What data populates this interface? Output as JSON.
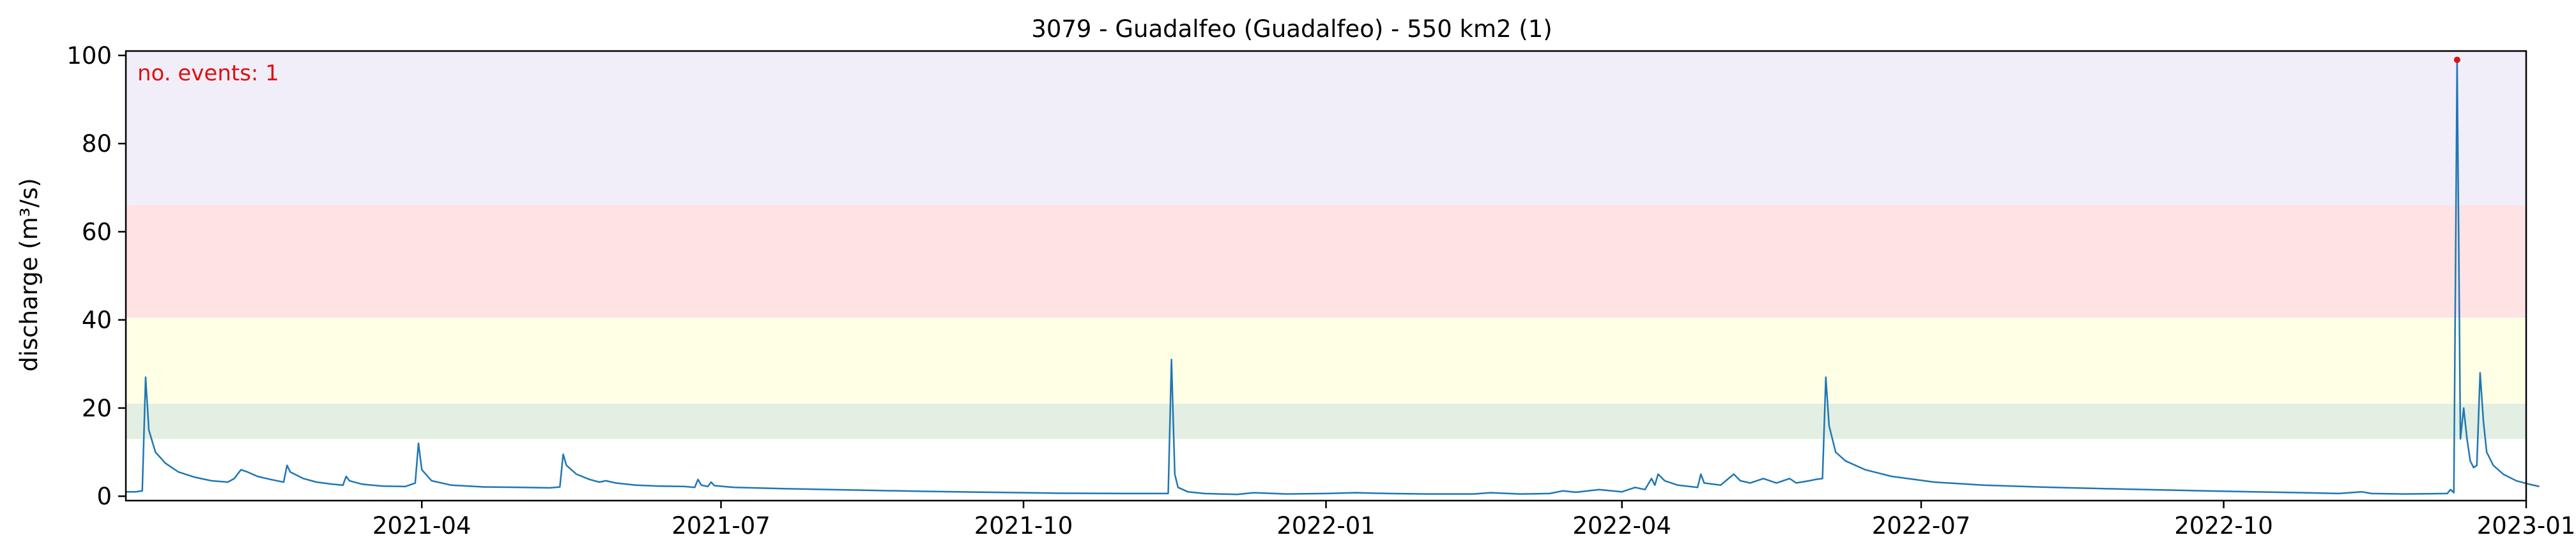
{
  "chart_data": {
    "type": "line",
    "title": "3079 - Guadalfeo (Guadalfeo) - 550 km2 (1)",
    "xlabel": "",
    "ylabel": "discharge (m³/s)",
    "xlim": [
      "2021-01-01",
      "2023-01-01"
    ],
    "ylim": [
      -1,
      101
    ],
    "x_ticks": [
      "2021-04",
      "2021-07",
      "2021-10",
      "2022-01",
      "2022-04",
      "2022-07",
      "2022-10",
      "2023-01"
    ],
    "y_ticks": [
      0,
      20,
      40,
      60,
      80,
      100
    ],
    "grid": false,
    "threshold_bands": [
      {
        "from": 13,
        "to": 21,
        "color": "#e3efe3"
      },
      {
        "from": 21,
        "to": 40.5,
        "color": "#ffffe6"
      },
      {
        "from": 40.5,
        "to": 66,
        "color": "#ffe2e4"
      },
      {
        "from": 66,
        "to": 101,
        "color": "#f1eef9"
      }
    ],
    "annotation": {
      "text": "no. events: 1",
      "color": "#dd1111"
    },
    "event_points": [
      {
        "x": "2022-12-11",
        "y": 99
      }
    ],
    "series": [
      {
        "color": "#1f77b4",
        "points": [
          [
            "2021-01-01",
            1.0
          ],
          [
            "2021-01-04",
            1.0
          ],
          [
            "2021-01-06",
            1.2
          ],
          [
            "2021-01-07",
            27
          ],
          [
            "2021-01-08",
            15
          ],
          [
            "2021-01-10",
            10
          ],
          [
            "2021-01-13",
            7.5
          ],
          [
            "2021-01-17",
            5.5
          ],
          [
            "2021-01-22",
            4.3
          ],
          [
            "2021-01-27",
            3.5
          ],
          [
            "2021-02-01",
            3.2
          ],
          [
            "2021-02-03",
            4.0
          ],
          [
            "2021-02-05",
            6.0
          ],
          [
            "2021-02-07",
            5.5
          ],
          [
            "2021-02-10",
            4.5
          ],
          [
            "2021-02-14",
            3.8
          ],
          [
            "2021-02-18",
            3.2
          ],
          [
            "2021-02-19",
            7.0
          ],
          [
            "2021-02-20",
            5.5
          ],
          [
            "2021-02-24",
            4.0
          ],
          [
            "2021-02-28",
            3.2
          ],
          [
            "2021-03-05",
            2.7
          ],
          [
            "2021-03-08",
            2.5
          ],
          [
            "2021-03-09",
            4.5
          ],
          [
            "2021-03-10",
            3.5
          ],
          [
            "2021-03-14",
            2.7
          ],
          [
            "2021-03-20",
            2.3
          ],
          [
            "2021-03-27",
            2.2
          ],
          [
            "2021-03-30",
            3.0
          ],
          [
            "2021-03-31",
            12
          ],
          [
            "2021-04-01",
            6.0
          ],
          [
            "2021-04-04",
            3.5
          ],
          [
            "2021-04-10",
            2.5
          ],
          [
            "2021-04-20",
            2.1
          ],
          [
            "2021-05-01",
            2.0
          ],
          [
            "2021-05-10",
            1.9
          ],
          [
            "2021-05-13",
            2.1
          ],
          [
            "2021-05-14",
            9.5
          ],
          [
            "2021-05-15",
            7.0
          ],
          [
            "2021-05-18",
            5.0
          ],
          [
            "2021-05-22",
            3.8
          ],
          [
            "2021-05-25",
            3.2
          ],
          [
            "2021-05-27",
            3.5
          ],
          [
            "2021-05-30",
            3.0
          ],
          [
            "2021-06-05",
            2.5
          ],
          [
            "2021-06-12",
            2.3
          ],
          [
            "2021-06-20",
            2.2
          ],
          [
            "2021-06-23",
            2.0
          ],
          [
            "2021-06-24",
            3.8
          ],
          [
            "2021-06-25",
            2.5
          ],
          [
            "2021-06-27",
            2.2
          ],
          [
            "2021-06-28",
            3.2
          ],
          [
            "2021-06-29",
            2.4
          ],
          [
            "2021-07-05",
            2.0
          ],
          [
            "2021-07-20",
            1.7
          ],
          [
            "2021-08-10",
            1.4
          ],
          [
            "2021-09-01",
            1.1
          ],
          [
            "2021-09-20",
            0.9
          ],
          [
            "2021-10-10",
            0.7
          ],
          [
            "2021-11-01",
            0.6
          ],
          [
            "2021-11-14",
            0.6
          ],
          [
            "2021-11-15",
            31
          ],
          [
            "2021-11-16",
            5.0
          ],
          [
            "2021-11-17",
            2.0
          ],
          [
            "2021-11-20",
            1.0
          ],
          [
            "2021-11-25",
            0.6
          ],
          [
            "2021-12-05",
            0.4
          ],
          [
            "2021-12-10",
            0.8
          ],
          [
            "2021-12-20",
            0.5
          ],
          [
            "2022-01-01",
            0.6
          ],
          [
            "2022-01-10",
            0.8
          ],
          [
            "2022-01-20",
            0.6
          ],
          [
            "2022-02-01",
            0.5
          ],
          [
            "2022-02-15",
            0.5
          ],
          [
            "2022-02-20",
            0.8
          ],
          [
            "2022-03-01",
            0.5
          ],
          [
            "2022-03-10",
            0.6
          ],
          [
            "2022-03-14",
            1.2
          ],
          [
            "2022-03-18",
            0.9
          ],
          [
            "2022-03-25",
            1.5
          ],
          [
            "2022-04-01",
            1.0
          ],
          [
            "2022-04-05",
            2.0
          ],
          [
            "2022-04-08",
            1.5
          ],
          [
            "2022-04-10",
            4.0
          ],
          [
            "2022-04-11",
            2.5
          ],
          [
            "2022-04-12",
            5.0
          ],
          [
            "2022-04-14",
            3.5
          ],
          [
            "2022-04-18",
            2.5
          ],
          [
            "2022-04-24",
            2.0
          ],
          [
            "2022-04-25",
            5.0
          ],
          [
            "2022-04-26",
            3.0
          ],
          [
            "2022-05-01",
            2.5
          ],
          [
            "2022-05-05",
            5.0
          ],
          [
            "2022-05-07",
            3.5
          ],
          [
            "2022-05-10",
            3.0
          ],
          [
            "2022-05-14",
            4.0
          ],
          [
            "2022-05-18",
            3.0
          ],
          [
            "2022-05-22",
            4.0
          ],
          [
            "2022-05-24",
            3.0
          ],
          [
            "2022-05-28",
            3.5
          ],
          [
            "2022-05-30",
            3.8
          ],
          [
            "2022-06-01",
            4.0
          ],
          [
            "2022-06-02",
            27
          ],
          [
            "2022-06-03",
            16
          ],
          [
            "2022-06-05",
            10
          ],
          [
            "2022-06-08",
            8.0
          ],
          [
            "2022-06-14",
            6.0
          ],
          [
            "2022-06-22",
            4.5
          ],
          [
            "2022-07-05",
            3.2
          ],
          [
            "2022-07-20",
            2.5
          ],
          [
            "2022-08-10",
            2.0
          ],
          [
            "2022-09-01",
            1.6
          ],
          [
            "2022-09-20",
            1.3
          ],
          [
            "2022-10-10",
            1.0
          ],
          [
            "2022-10-25",
            0.8
          ],
          [
            "2022-11-05",
            0.6
          ],
          [
            "2022-11-12",
            1.0
          ],
          [
            "2022-11-15",
            0.6
          ],
          [
            "2022-11-25",
            0.5
          ],
          [
            "2022-12-08",
            0.6
          ],
          [
            "2022-12-09",
            1.5
          ],
          [
            "2022-12-10",
            0.8
          ],
          [
            "2022-12-11",
            99
          ],
          [
            "2022-12-12",
            13
          ],
          [
            "2022-12-13",
            20
          ],
          [
            "2022-12-14",
            13
          ],
          [
            "2022-12-15",
            8.0
          ],
          [
            "2022-12-16",
            6.5
          ],
          [
            "2022-12-17",
            7.0
          ],
          [
            "2022-12-18",
            28
          ],
          [
            "2022-12-19",
            17
          ],
          [
            "2022-12-20",
            10
          ],
          [
            "2022-12-22",
            7.0
          ],
          [
            "2022-12-25",
            5.0
          ],
          [
            "2022-12-29",
            3.5
          ],
          [
            "2023-01-02",
            2.7
          ],
          [
            "2023-01-05",
            2.2
          ]
        ]
      }
    ]
  }
}
